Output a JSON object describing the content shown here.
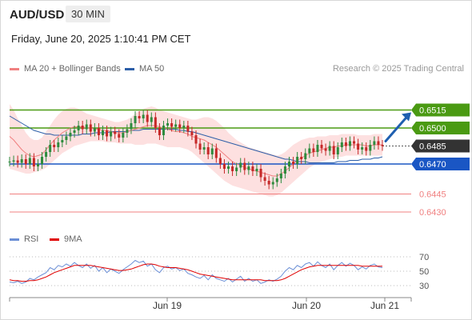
{
  "header": {
    "symbol": "AUD/USD",
    "timeframe": "30 MIN",
    "datetime": "Friday, June 20, 2025 1:10:41 PM CET"
  },
  "legend": {
    "ma20_label": "MA 20 + Bollinger Bands",
    "ma20_color": "#f08080",
    "ma50_label": "MA 50",
    "ma50_color": "#2c5ea8",
    "credit": "Research © 2025 Trading Central"
  },
  "rsi_legend": {
    "rsi_label": "RSI",
    "rsi_color": "#6b8fd6",
    "ma_label": "9MA",
    "ma_color": "#e00000"
  },
  "chart_data": {
    "type": "candlestick",
    "x_ticks": [
      "Jun 19",
      "Jun 20",
      "Jun 21"
    ],
    "ylim": [
      0.642,
      0.654
    ],
    "levels": [
      {
        "value": 0.6515,
        "label": "0.6515",
        "kind": "resistance",
        "color": "#4a9a12"
      },
      {
        "value": 0.65,
        "label": "0.6500",
        "kind": "resistance",
        "color": "#4a9a12"
      },
      {
        "value": 0.6485,
        "label": "0.6485",
        "kind": "current",
        "color": "#333333"
      },
      {
        "value": 0.647,
        "label": "0.6470",
        "kind": "pivot",
        "color": "#1a56c4"
      },
      {
        "value": 0.6445,
        "label": "0.6445",
        "kind": "support",
        "color": "#f08080"
      },
      {
        "value": 0.643,
        "label": "0.6430",
        "kind": "support",
        "color": "#f08080"
      }
    ],
    "closes": [
      0.6472,
      0.6473,
      0.6471,
      0.6474,
      0.647,
      0.6475,
      0.6468,
      0.647,
      0.6476,
      0.648,
      0.6486,
      0.6484,
      0.6488,
      0.649,
      0.6493,
      0.6496,
      0.6498,
      0.6502,
      0.6499,
      0.6503,
      0.6497,
      0.65,
      0.6494,
      0.6498,
      0.6493,
      0.6497,
      0.6495,
      0.6492,
      0.6496,
      0.6499,
      0.6504,
      0.651,
      0.6508,
      0.6511,
      0.6505,
      0.6509,
      0.65,
      0.6494,
      0.6502,
      0.6504,
      0.6501,
      0.6503,
      0.65,
      0.6502,
      0.6497,
      0.6494,
      0.6487,
      0.6482,
      0.6484,
      0.6478,
      0.6483,
      0.6475,
      0.647,
      0.6466,
      0.6468,
      0.6464,
      0.6467,
      0.6471,
      0.6465,
      0.6468,
      0.6464,
      0.6466,
      0.6459,
      0.6456,
      0.6453,
      0.6455,
      0.6458,
      0.6462,
      0.6468,
      0.6472,
      0.647,
      0.6476,
      0.6474,
      0.6479,
      0.6483,
      0.648,
      0.6486,
      0.6483,
      0.6481,
      0.6485,
      0.6478,
      0.6484,
      0.6488,
      0.6485,
      0.6489,
      0.6487,
      0.6482,
      0.6484,
      0.6481,
      0.6486,
      0.6489,
      0.6486,
      0.6485
    ],
    "bb_upper": [
      0.652,
      0.6515,
      0.6508,
      0.6502,
      0.6496,
      0.6492,
      0.649,
      0.649,
      0.6492,
      0.6497,
      0.6502,
      0.6507,
      0.6511,
      0.6514,
      0.6516,
      0.6517,
      0.6517,
      0.6516,
      0.6514,
      0.6512,
      0.6511,
      0.651,
      0.6509,
      0.6508,
      0.6507,
      0.6506,
      0.6505,
      0.6505,
      0.6506,
      0.6507,
      0.6509,
      0.6512,
      0.6514,
      0.6516,
      0.6517,
      0.6518,
      0.6517,
      0.6515,
      0.6514,
      0.6513,
      0.6512,
      0.6511,
      0.651,
      0.6509,
      0.6508,
      0.6507,
      0.6507,
      0.6508,
      0.6509,
      0.6509,
      0.6508,
      0.6506,
      0.6503,
      0.65,
      0.6496,
      0.6493,
      0.649,
      0.6488,
      0.6486,
      0.6484,
      0.6483,
      0.6482,
      0.6481,
      0.648,
      0.6479,
      0.6478,
      0.6477,
      0.6478,
      0.648,
      0.6483,
      0.6486,
      0.6488,
      0.649,
      0.6491,
      0.6492,
      0.6492,
      0.6493,
      0.6493,
      0.6493,
      0.6494,
      0.6494,
      0.6494,
      0.6495,
      0.6495,
      0.6495,
      0.6495,
      0.6494,
      0.6494,
      0.6494,
      0.6494,
      0.6495,
      0.6495,
      0.6495
    ],
    "bb_lower": [
      0.6466,
      0.6465,
      0.6464,
      0.6463,
      0.6462,
      0.6462,
      0.6463,
      0.6464,
      0.6465,
      0.6467,
      0.647,
      0.6473,
      0.6476,
      0.6479,
      0.6481,
      0.6483,
      0.6485,
      0.6486,
      0.6487,
      0.6488,
      0.6489,
      0.6489,
      0.6489,
      0.6489,
      0.6488,
      0.6488,
      0.6488,
      0.6487,
      0.6487,
      0.6487,
      0.6487,
      0.6486,
      0.6486,
      0.6486,
      0.6487,
      0.6487,
      0.6487,
      0.6486,
      0.6485,
      0.6484,
      0.6484,
      0.6484,
      0.6484,
      0.6483,
      0.6482,
      0.648,
      0.6477,
      0.6474,
      0.6471,
      0.6468,
      0.6465,
      0.6462,
      0.6459,
      0.6456,
      0.6454,
      0.6452,
      0.6451,
      0.645,
      0.6449,
      0.6448,
      0.6447,
      0.6446,
      0.6445,
      0.6444,
      0.6443,
      0.6443,
      0.6444,
      0.6446,
      0.6449,
      0.6452,
      0.6455,
      0.6458,
      0.6461,
      0.6464,
      0.6467,
      0.6469,
      0.6471,
      0.6472,
      0.6473,
      0.6474,
      0.6475,
      0.6476,
      0.6476,
      0.6477,
      0.6477,
      0.6477,
      0.6477,
      0.6477,
      0.6477,
      0.6477,
      0.6477,
      0.6477,
      0.6477
    ],
    "ma20": [
      0.6493,
      0.649,
      0.6486,
      0.6482,
      0.6479,
      0.6477,
      0.6476,
      0.6477,
      0.6478,
      0.6482,
      0.6486,
      0.649,
      0.6493,
      0.6496,
      0.6498,
      0.65,
      0.6501,
      0.6501,
      0.6501,
      0.65,
      0.65,
      0.6499,
      0.6499,
      0.6498,
      0.6498,
      0.6497,
      0.6496,
      0.6496,
      0.6496,
      0.6497,
      0.6498,
      0.6499,
      0.65,
      0.6501,
      0.6502,
      0.6502,
      0.6502,
      0.6501,
      0.65,
      0.6499,
      0.6498,
      0.6497,
      0.6497,
      0.6496,
      0.6495,
      0.6493,
      0.6492,
      0.6491,
      0.649,
      0.6488,
      0.6486,
      0.6484,
      0.6481,
      0.6478,
      0.6475,
      0.6472,
      0.647,
      0.6469,
      0.6467,
      0.6466,
      0.6465,
      0.6464,
      0.6463,
      0.6462,
      0.6461,
      0.646,
      0.646,
      0.6462,
      0.6464,
      0.6467,
      0.647,
      0.6473,
      0.6475,
      0.6477,
      0.6479,
      0.648,
      0.6481,
      0.6482,
      0.6483,
      0.6484,
      0.6484,
      0.6485,
      0.6485,
      0.6486,
      0.6486,
      0.6486,
      0.6486,
      0.6486,
      0.6485,
      0.6485,
      0.6486,
      0.6486,
      0.6486
    ],
    "ma50": [
      0.651,
      0.6508,
      0.6506,
      0.6504,
      0.6502,
      0.65,
      0.6498,
      0.6497,
      0.6496,
      0.6495,
      0.6495,
      0.6494,
      0.6494,
      0.6494,
      0.6494,
      0.6494,
      0.6494,
      0.6494,
      0.6495,
      0.6495,
      0.6495,
      0.6496,
      0.6496,
      0.6496,
      0.6496,
      0.6497,
      0.6497,
      0.6497,
      0.6497,
      0.6497,
      0.6498,
      0.6498,
      0.6498,
      0.6499,
      0.6499,
      0.6499,
      0.6499,
      0.6499,
      0.6499,
      0.6499,
      0.6499,
      0.6499,
      0.6498,
      0.6498,
      0.6497,
      0.6497,
      0.6496,
      0.6495,
      0.6494,
      0.6493,
      0.6492,
      0.6491,
      0.649,
      0.6489,
      0.6488,
      0.6487,
      0.6486,
      0.6485,
      0.6484,
      0.6483,
      0.6482,
      0.6481,
      0.648,
      0.6479,
      0.6478,
      0.6477,
      0.6476,
      0.6475,
      0.6474,
      0.6474,
      0.6473,
      0.6472,
      0.6472,
      0.6472,
      0.6471,
      0.6471,
      0.6471,
      0.6471,
      0.6471,
      0.6471,
      0.6471,
      0.6472,
      0.6472,
      0.6472,
      0.6473,
      0.6473,
      0.6473,
      0.6474,
      0.6474,
      0.6474,
      0.6475,
      0.6475,
      0.6476
    ],
    "rsi": {
      "ylim": [
        20,
        80
      ],
      "ticks": [
        30,
        50,
        70
      ],
      "rsi": [
        35,
        34,
        36,
        33,
        35,
        40,
        38,
        42,
        45,
        48,
        55,
        52,
        58,
        56,
        60,
        57,
        62,
        58,
        55,
        60,
        54,
        58,
        50,
        55,
        48,
        53,
        50,
        47,
        52,
        56,
        60,
        65,
        62,
        64,
        57,
        60,
        52,
        48,
        55,
        57,
        53,
        55,
        51,
        53,
        47,
        45,
        42,
        40,
        44,
        38,
        45,
        40,
        38,
        36,
        40,
        35,
        39,
        43,
        36,
        40,
        36,
        38,
        33,
        35,
        38,
        36,
        39,
        43,
        50,
        55,
        52,
        58,
        55,
        60,
        62,
        57,
        63,
        58,
        55,
        60,
        52,
        58,
        62,
        57,
        61,
        58,
        52,
        56,
        53,
        58,
        60,
        56,
        55
      ],
      "ma9": [
        38,
        37,
        37,
        36,
        36,
        37,
        37,
        38,
        40,
        42,
        45,
        48,
        50,
        52,
        54,
        56,
        58,
        58,
        58,
        58,
        58,
        57,
        56,
        55,
        54,
        53,
        52,
        51,
        51,
        52,
        53,
        55,
        57,
        59,
        60,
        60,
        59,
        57,
        56,
        55,
        55,
        55,
        54,
        53,
        52,
        50,
        48,
        46,
        45,
        44,
        43,
        42,
        41,
        40,
        39,
        38,
        38,
        38,
        38,
        38,
        38,
        38,
        38,
        37,
        37,
        37,
        37,
        38,
        40,
        43,
        46,
        49,
        52,
        54,
        56,
        57,
        58,
        58,
        58,
        58,
        58,
        58,
        58,
        58,
        58,
        58,
        58,
        57,
        57,
        57,
        57,
        57,
        57
      ]
    }
  }
}
